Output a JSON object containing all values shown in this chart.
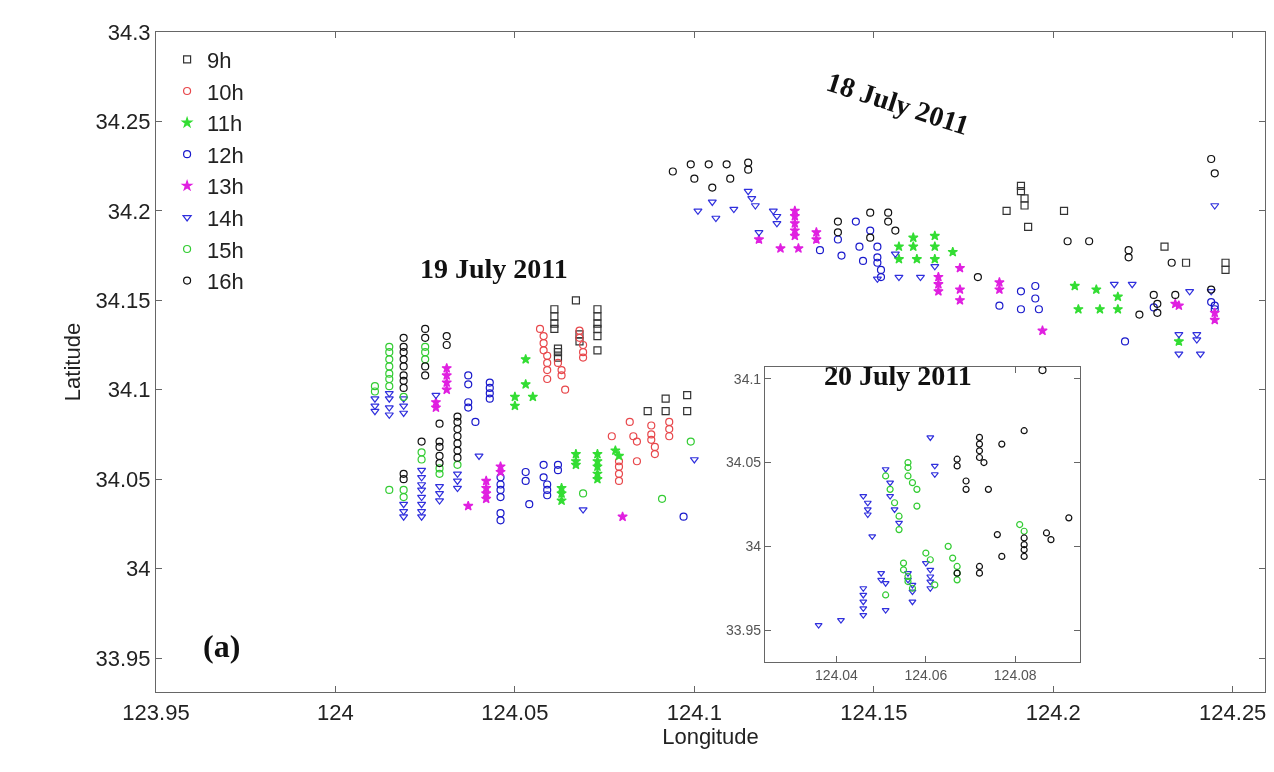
{
  "chart_data": [
    {
      "type": "scatter",
      "xlabel": "Longitude",
      "ylabel": "Latitude",
      "xlim": [
        123.95,
        124.259
      ],
      "ylim": [
        33.931,
        34.3
      ],
      "xticks": [
        123.95,
        124,
        124.05,
        124.1,
        124.15,
        124.2,
        124.25
      ],
      "yticks": [
        33.95,
        34,
        34.05,
        34.1,
        34.15,
        34.2,
        34.25,
        34.3
      ],
      "legend": "top left",
      "annotations": [
        "18 July 2011",
        "19 July 2011",
        "20 July 2011",
        "(a)"
      ],
      "series": [
        {
          "name": "9h",
          "color": "#333333",
          "marker": "square",
          "x": [
            124.061,
            124.061,
            124.061,
            124.061,
            124.067,
            124.062,
            124.062,
            124.062,
            124.068,
            124.068,
            124.073,
            124.073,
            124.073,
            124.073,
            124.073,
            124.073,
            124.087,
            124.092,
            124.092,
            124.098,
            124.098,
            124.191,
            124.191,
            124.192,
            124.192,
            124.187,
            124.193,
            124.203,
            124.231,
            124.237,
            124.248,
            124.248
          ],
          "values": [
            34.145,
            34.141,
            34.137,
            34.134,
            34.15,
            34.123,
            34.121,
            34.118,
            34.131,
            34.127,
            34.145,
            34.141,
            34.137,
            34.134,
            34.13,
            34.122,
            34.088,
            34.095,
            34.088,
            34.097,
            34.088,
            34.214,
            34.211,
            34.207,
            34.203,
            34.2,
            34.191,
            34.2,
            34.18,
            34.171,
            34.171,
            34.167
          ]
        },
        {
          "name": "10h",
          "color": "#e8474b",
          "marker": "circle",
          "x": [
            124.057,
            124.058,
            124.058,
            124.058,
            124.059,
            124.059,
            124.059,
            124.059,
            124.062,
            124.063,
            124.063,
            124.064,
            124.068,
            124.068,
            124.069,
            124.069,
            124.069,
            124.077,
            124.079,
            124.079,
            124.079,
            124.079,
            124.082,
            124.083,
            124.084,
            124.084,
            124.088,
            124.088,
            124.088,
            124.089,
            124.089,
            124.093,
            124.093,
            124.093
          ],
          "values": [
            34.134,
            34.13,
            34.126,
            34.122,
            34.119,
            34.115,
            34.111,
            34.106,
            34.115,
            34.111,
            34.108,
            34.1,
            34.133,
            34.129,
            34.125,
            34.121,
            34.118,
            34.074,
            34.06,
            34.057,
            34.053,
            34.049,
            34.082,
            34.074,
            34.071,
            34.06,
            34.08,
            34.075,
            34.072,
            34.068,
            34.064,
            34.082,
            34.078,
            34.074
          ]
        },
        {
          "name": "11h",
          "color": "#33dd33",
          "marker": "star",
          "x": [
            124.05,
            124.05,
            124.053,
            124.053,
            124.055,
            124.067,
            124.067,
            124.067,
            124.073,
            124.073,
            124.073,
            124.073,
            124.073,
            124.078,
            124.079,
            124.063,
            124.063,
            124.063,
            124.157,
            124.157,
            124.161,
            124.161,
            124.162,
            124.167,
            124.167,
            124.167,
            124.172,
            124.206,
            124.212,
            124.207,
            124.213,
            124.218,
            124.218,
            124.235
          ],
          "values": [
            34.096,
            34.091,
            34.117,
            34.103,
            34.096,
            34.064,
            34.06,
            34.058,
            34.064,
            34.06,
            34.057,
            34.053,
            34.05,
            34.066,
            34.063,
            34.045,
            34.042,
            34.038,
            34.18,
            34.173,
            34.185,
            34.18,
            34.173,
            34.186,
            34.18,
            34.173,
            34.177,
            34.158,
            34.156,
            34.145,
            34.145,
            34.145,
            34.152,
            34.127
          ]
        },
        {
          "name": "12h",
          "color": "#1a1acc",
          "marker": "circle",
          "x": [
            124.037,
            124.037,
            124.037,
            124.037,
            124.043,
            124.043,
            124.043,
            124.043,
            124.039,
            124.046,
            124.046,
            124.046,
            124.046,
            124.046,
            124.046,
            124.053,
            124.053,
            124.054,
            124.058,
            124.058,
            124.059,
            124.059,
            124.059,
            124.062,
            124.062,
            124.097,
            124.135,
            124.14,
            124.141,
            124.145,
            124.146,
            124.147,
            124.149,
            124.151,
            124.151,
            124.151,
            124.152,
            124.152,
            124.191,
            124.195,
            124.195,
            124.185,
            124.191,
            124.196,
            124.22,
            124.228,
            124.244,
            124.245,
            124.245
          ],
          "values": [
            34.108,
            34.103,
            34.093,
            34.09,
            34.104,
            34.101,
            34.098,
            34.095,
            34.082,
            34.051,
            34.047,
            34.044,
            34.04,
            34.031,
            34.027,
            34.054,
            34.049,
            34.036,
            34.058,
            34.051,
            34.047,
            34.044,
            34.041,
            34.058,
            34.055,
            34.029,
            34.178,
            34.184,
            34.175,
            34.194,
            34.18,
            34.172,
            34.189,
            34.18,
            34.174,
            34.171,
            34.167,
            34.163,
            34.155,
            34.158,
            34.151,
            34.147,
            34.145,
            34.145,
            34.127,
            34.146,
            34.149,
            34.147,
            34.145
          ]
        },
        {
          "name": "13h",
          "color": "#e020e0",
          "marker": "star",
          "x": [
            124.031,
            124.031,
            124.031,
            124.031,
            124.028,
            124.028,
            124.037,
            124.042,
            124.042,
            124.042,
            124.042,
            124.046,
            124.046,
            124.08,
            124.118,
            124.124,
            124.128,
            124.128,
            124.128,
            124.128,
            124.128,
            124.129,
            124.134,
            124.134,
            124.168,
            124.168,
            124.168,
            124.174,
            124.174,
            124.174,
            124.185,
            124.185,
            124.197,
            124.234,
            124.235,
            124.245,
            124.245
          ],
          "values": [
            34.112,
            34.108,
            34.104,
            34.1,
            34.093,
            34.09,
            34.035,
            34.049,
            34.045,
            34.042,
            34.039,
            34.057,
            34.054,
            34.029,
            34.184,
            34.179,
            34.2,
            34.197,
            34.193,
            34.189,
            34.186,
            34.179,
            34.188,
            34.184,
            34.163,
            34.159,
            34.155,
            34.168,
            34.156,
            34.15,
            34.16,
            34.156,
            34.133,
            34.148,
            34.147,
            34.143,
            34.139
          ]
        },
        {
          "name": "14h",
          "color": "#3030dd",
          "marker": "triangle",
          "x": [
            124.011,
            124.011,
            124.011,
            124.015,
            124.015,
            124.015,
            124.015,
            124.019,
            124.019,
            124.019,
            124.028,
            124.019,
            124.019,
            124.019,
            124.024,
            124.024,
            124.024,
            124.024,
            124.024,
            124.024,
            124.024,
            124.024,
            124.029,
            124.029,
            124.029,
            124.034,
            124.034,
            124.034,
            124.04,
            124.1,
            124.069,
            124.101,
            124.105,
            124.106,
            124.111,
            124.115,
            124.116,
            124.117,
            124.118,
            124.122,
            124.123,
            124.123,
            124.156,
            124.151,
            124.157,
            124.163,
            124.167,
            124.245,
            124.217,
            124.222,
            124.238,
            124.244,
            124.235,
            124.24,
            124.235,
            124.241,
            124.24
          ],
          "values": [
            34.095,
            34.091,
            34.088,
            34.098,
            34.095,
            34.09,
            34.086,
            34.095,
            34.091,
            34.087,
            34.097,
            34.036,
            34.032,
            34.029,
            34.055,
            34.051,
            34.047,
            34.044,
            34.04,
            34.036,
            34.032,
            34.029,
            34.046,
            34.042,
            34.038,
            34.053,
            34.049,
            34.045,
            34.063,
            34.061,
            34.033,
            34.2,
            34.205,
            34.196,
            34.201,
            34.211,
            34.207,
            34.203,
            34.188,
            34.2,
            34.197,
            34.193,
            34.176,
            34.162,
            34.163,
            34.163,
            34.169,
            34.203,
            34.159,
            34.159,
            34.155,
            34.155,
            34.131,
            34.131,
            34.12,
            34.12,
            34.128
          ]
        },
        {
          "name": "15h",
          "color": "#33cc33",
          "marker": "circle",
          "x": [
            124.011,
            124.011,
            124.015,
            124.015,
            124.015,
            124.015,
            124.015,
            124.015,
            124.015,
            124.019,
            124.025,
            124.025,
            124.025,
            124.015,
            124.019,
            124.019,
            124.024,
            124.024,
            124.029,
            124.029,
            124.034,
            124.099,
            124.069,
            124.091
          ],
          "values": [
            34.102,
            34.099,
            34.124,
            34.121,
            34.117,
            34.113,
            34.109,
            34.106,
            34.102,
            34.096,
            34.124,
            34.121,
            34.117,
            34.044,
            34.044,
            34.04,
            34.065,
            34.061,
            34.056,
            34.053,
            34.058,
            34.071,
            34.042,
            34.039
          ]
        },
        {
          "name": "16h",
          "color": "#111111",
          "marker": "circle",
          "x": [
            124.019,
            124.019,
            124.019,
            124.019,
            124.019,
            124.019,
            124.019,
            124.019,
            124.025,
            124.025,
            124.025,
            124.025,
            124.031,
            124.031,
            124.019,
            124.019,
            124.024,
            124.029,
            124.029,
            124.029,
            124.029,
            124.029,
            124.034,
            124.034,
            124.034,
            124.034,
            124.034,
            124.034,
            124.034,
            124.099,
            124.104,
            124.109,
            124.115,
            124.115,
            124.094,
            124.1,
            124.11,
            124.105,
            124.14,
            124.14,
            124.149,
            124.149,
            124.154,
            124.154,
            124.156,
            124.244,
            124.245,
            124.204,
            124.21,
            124.221,
            124.221,
            124.233,
            124.179,
            124.224,
            124.228,
            124.229,
            124.229,
            124.234,
            124.244,
            124.197
          ],
          "values": [
            34.129,
            34.124,
            34.121,
            34.117,
            34.113,
            34.108,
            34.105,
            34.101,
            34.134,
            34.129,
            34.113,
            34.108,
            34.13,
            34.125,
            34.053,
            34.05,
            34.071,
            34.081,
            34.071,
            34.068,
            34.063,
            34.059,
            34.085,
            34.082,
            34.078,
            34.074,
            34.07,
            34.066,
            34.062,
            34.226,
            34.226,
            34.226,
            34.227,
            34.223,
            34.222,
            34.218,
            34.218,
            34.213,
            34.194,
            34.188,
            34.199,
            34.185,
            34.199,
            34.194,
            34.189,
            34.229,
            34.221,
            34.183,
            34.183,
            34.178,
            34.174,
            34.171,
            34.163,
            34.142,
            34.153,
            34.148,
            34.143,
            34.153,
            34.156,
            34.111
          ]
        }
      ]
    },
    {
      "type": "scatter",
      "xlim": [
        124.024,
        124.0945
      ],
      "ylim": [
        33.931,
        34.107
      ],
      "xticks": [
        124.04,
        124.06,
        124.08
      ],
      "yticks": [
        33.95,
        34,
        34.05,
        34.1
      ],
      "series": [
        {
          "color": "#3030dd",
          "marker": "triangle",
          "x": [
            124.036,
            124.041,
            124.046,
            124.046,
            124.046,
            124.046,
            124.046,
            124.046,
            124.047,
            124.047,
            124.047,
            124.048,
            124.05,
            124.05,
            124.051,
            124.051,
            124.051,
            124.052,
            124.052,
            124.053,
            124.054,
            124.056,
            124.056,
            124.057,
            124.057,
            124.057,
            124.061,
            124.062,
            124.062,
            124.06,
            124.061,
            124.061,
            124.061,
            124.061
          ],
          "values": [
            33.953,
            33.956,
            33.975,
            33.971,
            33.967,
            33.963,
            33.959,
            34.03,
            34.026,
            34.022,
            34.019,
            34.006,
            33.984,
            33.98,
            33.978,
            33.962,
            34.046,
            34.038,
            34.03,
            34.022,
            34.014,
            33.984,
            33.98,
            33.977,
            33.973,
            33.967,
            34.065,
            34.048,
            34.043,
            33.99,
            33.986,
            33.982,
            33.979,
            33.975
          ]
        },
        {
          "color": "#33cc33",
          "marker": "circle",
          "x": [
            124.051,
            124.051,
            124.052,
            124.053,
            124.054,
            124.054,
            124.056,
            124.056,
            124.056,
            124.057,
            124.058,
            124.058,
            124.055,
            124.055,
            124.056,
            124.056,
            124.057,
            124.06,
            124.061,
            124.062,
            124.065,
            124.066,
            124.067,
            124.067,
            124.067,
            124.081,
            124.082
          ],
          "values": [
            33.971,
            34.042,
            34.034,
            34.026,
            34.018,
            34.01,
            34.05,
            34.047,
            34.042,
            34.038,
            34.034,
            34.024,
            33.99,
            33.986,
            33.982,
            33.979,
            33.975,
            33.996,
            33.992,
            33.977,
            34.0,
            33.993,
            33.988,
            33.984,
            33.98,
            34.013,
            34.009
          ]
        },
        {
          "color": "#111111",
          "marker": "circle",
          "x": [
            124.067,
            124.067,
            124.069,
            124.069,
            124.072,
            124.072,
            124.072,
            124.072,
            124.073,
            124.077,
            124.082,
            124.074,
            124.092,
            124.076,
            124.077,
            124.072,
            124.072,
            124.087,
            124.088,
            124.082,
            124.082,
            124.082,
            124.082,
            124.067
          ],
          "values": [
            34.052,
            34.048,
            34.039,
            34.034,
            34.065,
            34.061,
            34.057,
            34.053,
            34.05,
            34.061,
            34.069,
            34.034,
            34.017,
            34.007,
            33.994,
            33.988,
            33.984,
            34.008,
            34.004,
            34.005,
            34.001,
            33.998,
            33.994,
            33.984
          ]
        }
      ]
    }
  ]
}
